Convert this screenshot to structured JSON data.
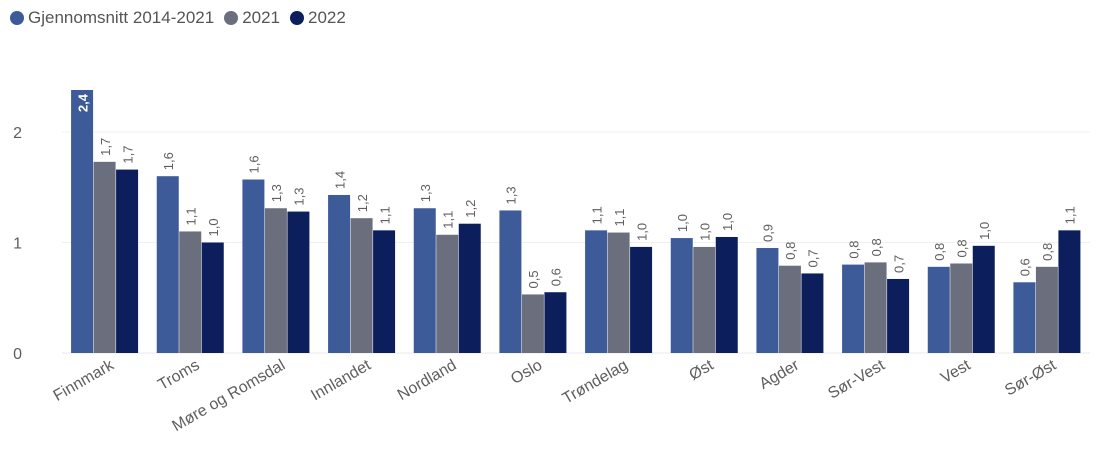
{
  "chart_data": {
    "type": "bar",
    "categories": [
      "Finnmark",
      "Troms",
      "Møre og Romsdal",
      "Innlandet",
      "Nordland",
      "Oslo",
      "Trøndelag",
      "Øst",
      "Agder",
      "Sør-Vest",
      "Vest",
      "Sør-Øst"
    ],
    "series": [
      {
        "name": "Gjennomsnitt 2014-2021",
        "color": "#3d5a99",
        "values": [
          2.38,
          1.6,
          1.57,
          1.43,
          1.31,
          1.29,
          1.11,
          1.04,
          0.95,
          0.8,
          0.78,
          0.64
        ],
        "labels": [
          "2,4",
          "1,6",
          "1,6",
          "1,4",
          "1,3",
          "1,3",
          "1,1",
          "1,0",
          "0,9",
          "0,8",
          "0,8",
          "0,6"
        ]
      },
      {
        "name": "2021",
        "color": "#6b6f7d",
        "values": [
          1.73,
          1.1,
          1.31,
          1.22,
          1.07,
          0.53,
          1.09,
          0.96,
          0.79,
          0.82,
          0.81,
          0.78
        ],
        "labels": [
          "1,7",
          "1,1",
          "1,3",
          "1,2",
          "1,1",
          "0,5",
          "1,1",
          "1,0",
          "0,8",
          "0,8",
          "0,8",
          "0,8"
        ]
      },
      {
        "name": "2022",
        "color": "#0c1f5c",
        "values": [
          1.66,
          1.0,
          1.28,
          1.11,
          1.17,
          0.55,
          0.96,
          1.05,
          0.72,
          0.67,
          0.97,
          1.11
        ],
        "labels": [
          "1,7",
          "1,0",
          "1,3",
          "1,1",
          "1,2",
          "0,6",
          "1,0",
          "1,0",
          "0,7",
          "0,7",
          "1,0",
          "1,1"
        ]
      }
    ],
    "yticks": [
      "0",
      "1",
      "2"
    ],
    "ylim": [
      0,
      2.4
    ],
    "grid": true,
    "legend_position": "top-left"
  }
}
